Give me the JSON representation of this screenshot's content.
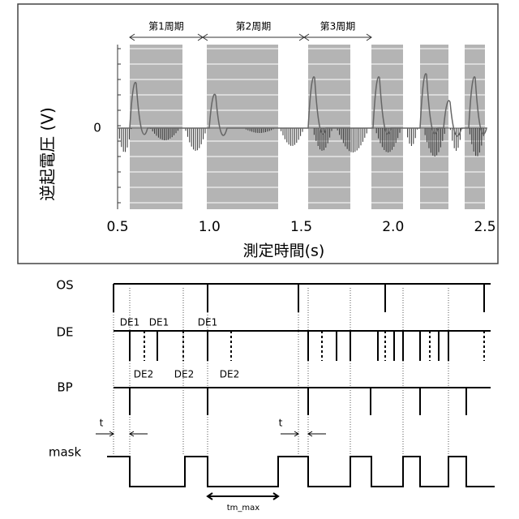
{
  "chart": {
    "y_label": "逆起電圧 (V)",
    "x_label": "測定時間(s)",
    "zero_label": "0",
    "x_ticks": [
      "0.5",
      "1.0",
      "1.5",
      "2.0",
      "2.5"
    ],
    "periods": [
      "第1周期",
      "第2周期",
      "第3周期"
    ]
  },
  "timing": {
    "rows": [
      "OS",
      "DE",
      "BP",
      "mask"
    ],
    "de1_labels": [
      "DE1",
      "DE1",
      "DE1"
    ],
    "de2_labels": [
      "DE2",
      "DE2",
      "DE2"
    ],
    "t_labels": [
      "t",
      "t"
    ],
    "tm_max": "tm_max"
  }
}
